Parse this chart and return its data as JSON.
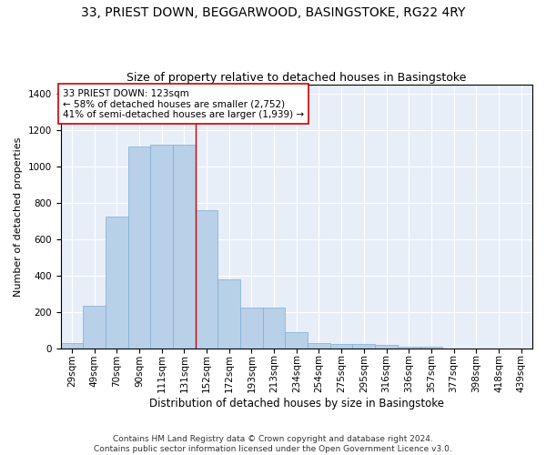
{
  "title": "33, PRIEST DOWN, BEGGARWOOD, BASINGSTOKE, RG22 4RY",
  "subtitle": "Size of property relative to detached houses in Basingstoke",
  "xlabel": "Distribution of detached houses by size in Basingstoke",
  "ylabel": "Number of detached properties",
  "bar_labels": [
    "29sqm",
    "49sqm",
    "70sqm",
    "90sqm",
    "111sqm",
    "131sqm",
    "152sqm",
    "172sqm",
    "193sqm",
    "213sqm",
    "234sqm",
    "254sqm",
    "275sqm",
    "295sqm",
    "316sqm",
    "336sqm",
    "357sqm",
    "377sqm",
    "398sqm",
    "418sqm",
    "439sqm"
  ],
  "bar_values": [
    30,
    235,
    725,
    1110,
    1120,
    1120,
    760,
    380,
    225,
    225,
    90,
    30,
    25,
    25,
    18,
    12,
    10,
    0,
    0,
    0,
    0
  ],
  "bar_color": "#b8d0e8",
  "bar_edge_color": "#7aafd4",
  "background_color": "#e8eef8",
  "grid_color": "#ffffff",
  "vline_x": 5.5,
  "vline_color": "#cc0000",
  "annotation_text": "33 PRIEST DOWN: 123sqm\n← 58% of detached houses are smaller (2,752)\n41% of semi-detached houses are larger (1,939) →",
  "annotation_box_color": "#ffffff",
  "annotation_box_edge_color": "#cc0000",
  "ylim": [
    0,
    1450
  ],
  "yticks": [
    0,
    200,
    400,
    600,
    800,
    1000,
    1200,
    1400
  ],
  "footer": "Contains HM Land Registry data © Crown copyright and database right 2024.\nContains public sector information licensed under the Open Government Licence v3.0.",
  "title_fontsize": 10,
  "subtitle_fontsize": 9,
  "ylabel_fontsize": 8,
  "xlabel_fontsize": 8.5,
  "tick_fontsize": 7.5,
  "annotation_fontsize": 7.5,
  "footer_fontsize": 6.5
}
